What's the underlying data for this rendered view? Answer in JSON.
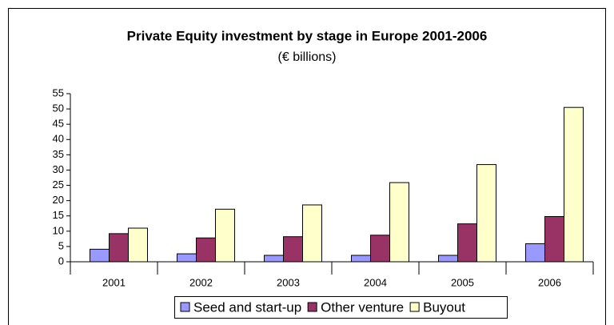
{
  "chart_data": {
    "type": "bar",
    "title": "Private Equity investment by stage in Europe 2001-2006",
    "subtitle": "(€ billions)",
    "categories": [
      "2001",
      "2002",
      "2003",
      "2004",
      "2005",
      "2006"
    ],
    "series": [
      {
        "name": "Seed and start-up",
        "color": "#9999ff",
        "values": [
          4.1,
          2.6,
          2.1,
          2.1,
          2.1,
          5.9
        ]
      },
      {
        "name": "Other venture",
        "color": "#993366",
        "values": [
          9.2,
          7.8,
          8.2,
          8.7,
          12.4,
          14.8
        ]
      },
      {
        "name": "Buyout",
        "color": "#ffffcc",
        "values": [
          11.0,
          17.2,
          18.6,
          25.9,
          31.8,
          50.5
        ]
      }
    ],
    "ylim": [
      0,
      55
    ],
    "yticks": [
      0,
      5,
      10,
      15,
      20,
      25,
      30,
      35,
      40,
      45,
      50,
      55
    ],
    "grid": false,
    "legend": "bottom"
  }
}
